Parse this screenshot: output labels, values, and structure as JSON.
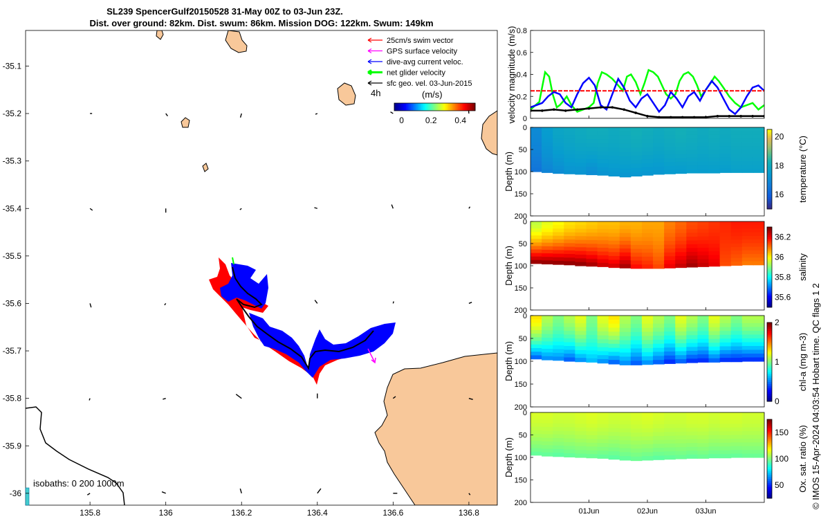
{
  "title": {
    "line1": "SL239 SpencerGulf20150528 31-May 00Z to 03-Jun 23Z.",
    "line2": "Dist. over ground: 82km. Dist. swum: 86km. Mission DOG: 122km. Swum: 149km"
  },
  "colors": {
    "swim": "#ff0000",
    "gps": "#ff00ff",
    "current": "#0000ff",
    "net": "#00ff00",
    "geo": "#000000",
    "land": "#f8c89a"
  },
  "map": {
    "legend": [
      {
        "label": "25cm/s swim vector",
        "color": "#ff0000"
      },
      {
        "label": "GPS surface velocity",
        "color": "#ff00ff"
      },
      {
        "label": "dive-avg current veloc.",
        "color": "#0000ff"
      },
      {
        "label": "net glider velocity",
        "color": "#00ff00"
      },
      {
        "label": "sfc geo. vel. 03-Jun-2015",
        "color": "#000000"
      }
    ],
    "interval_label": "4h",
    "colorbar": {
      "label": "(m/s)",
      "ticks": [
        "0",
        "0.2",
        "0.4"
      ],
      "range": [
        -0.05,
        0.5
      ]
    },
    "isobaths_label": "isobaths: 0   200  1000m",
    "lon_ticks": [
      "135.8",
      "136",
      "136.2",
      "136.4",
      "136.6",
      "136.8"
    ],
    "lat_ticks": [
      "-35.1",
      "-35.2",
      "-35.3",
      "-35.4",
      "-35.5",
      "-35.6",
      "-35.7",
      "-35.8",
      "-35.9",
      "-36"
    ],
    "xlim": [
      135.63,
      136.875
    ],
    "ylim": [
      -36.025,
      -35.025
    ]
  },
  "chart_data": [
    {
      "type": "line",
      "title": "",
      "xlabel": "",
      "ylabel": "velocity magnitude (m/s)",
      "ylim": [
        0,
        0.8
      ],
      "yticks": [
        "0",
        "0.2",
        "0.4",
        "0.6",
        "0.8"
      ],
      "xlim": [
        0,
        4
      ],
      "series": [
        {
          "name": "net glider velocity",
          "color": "#00ff00",
          "x": [
            0,
            0.15,
            0.25,
            0.32,
            0.38,
            0.45,
            0.5,
            0.55,
            0.62,
            0.7,
            0.8,
            0.9,
            1.0,
            1.08,
            1.15,
            1.22,
            1.3,
            1.4,
            1.5,
            1.58,
            1.65,
            1.72,
            1.8,
            1.88,
            1.95,
            2.02,
            2.1,
            2.18,
            2.25,
            2.32,
            2.4,
            2.48,
            2.55,
            2.62,
            2.7,
            2.78,
            2.85,
            2.92,
            3.0,
            3.08,
            3.15,
            3.22,
            3.3,
            3.4,
            3.5,
            3.6,
            3.7,
            3.8,
            3.9,
            4.0
          ],
          "values": [
            0.08,
            0.15,
            0.42,
            0.38,
            0.22,
            0.1,
            0.12,
            0.15,
            0.2,
            0.12,
            0.06,
            0.08,
            0.1,
            0.14,
            0.32,
            0.42,
            0.4,
            0.36,
            0.3,
            0.25,
            0.38,
            0.4,
            0.33,
            0.22,
            0.32,
            0.44,
            0.42,
            0.38,
            0.3,
            0.22,
            0.18,
            0.22,
            0.34,
            0.4,
            0.42,
            0.38,
            0.3,
            0.2,
            0.26,
            0.32,
            0.38,
            0.34,
            0.28,
            0.2,
            0.14,
            0.1,
            0.12,
            0.14,
            0.08,
            0.12
          ]
        },
        {
          "name": "dive-avg current veloc.",
          "color": "#0000ff",
          "x": [
            0,
            0.1,
            0.2,
            0.3,
            0.4,
            0.5,
            0.6,
            0.7,
            0.8,
            0.9,
            1.0,
            1.1,
            1.2,
            1.3,
            1.4,
            1.5,
            1.6,
            1.7,
            1.8,
            1.9,
            2.0,
            2.1,
            2.2,
            2.3,
            2.4,
            2.5,
            2.6,
            2.7,
            2.8,
            2.9,
            3.0,
            3.1,
            3.2,
            3.3,
            3.4,
            3.5,
            3.6,
            3.7,
            3.8,
            3.9,
            4.0
          ],
          "values": [
            0.1,
            0.12,
            0.14,
            0.2,
            0.24,
            0.22,
            0.14,
            0.1,
            0.22,
            0.32,
            0.37,
            0.3,
            0.12,
            0.08,
            0.22,
            0.36,
            0.28,
            0.16,
            0.1,
            0.18,
            0.22,
            0.14,
            0.06,
            0.12,
            0.24,
            0.18,
            0.1,
            0.2,
            0.24,
            0.16,
            0.26,
            0.34,
            0.28,
            0.18,
            0.08,
            0.04,
            0.1,
            0.2,
            0.28,
            0.3,
            0.25
          ]
        },
        {
          "name": "25cm/s swim vector",
          "color": "#ff0000",
          "x": [
            0,
            4
          ],
          "values": [
            0.25,
            0.25
          ]
        },
        {
          "name": "sfc geo. vel. 03-Jun-2015",
          "color": "#000000",
          "x": [
            0,
            0.2,
            0.4,
            0.6,
            0.8,
            1.0,
            1.2,
            1.4,
            1.6,
            1.8,
            2.0,
            2.2,
            2.4,
            2.6,
            2.8,
            3.0,
            3.2,
            3.4,
            3.6,
            3.8,
            4.0
          ],
          "values": [
            0.07,
            0.07,
            0.08,
            0.07,
            0.08,
            0.09,
            0.1,
            0.1,
            0.08,
            0.05,
            0.02,
            0.01,
            0.01,
            0.01,
            0.01,
            0.01,
            0.02,
            0.02,
            0.02,
            0.02,
            0.02
          ]
        }
      ]
    },
    {
      "type": "heatmap",
      "ylabel": "Depth (m)",
      "colorbar_label": "temperature (°C)",
      "colorbar_ticks": [
        "16",
        "18",
        "20"
      ],
      "clim": [
        15,
        20.5
      ],
      "ylim": [
        0,
        200
      ],
      "yticks": [
        "0",
        "50",
        "100",
        "150",
        "200"
      ],
      "bottom_depth": [
        100,
        102,
        104,
        105,
        106,
        107,
        108,
        110,
        112,
        110,
        108,
        106,
        105,
        104,
        103,
        103,
        103,
        102,
        102,
        102,
        102
      ],
      "surface_values": [
        17.0,
        17.5,
        17.8,
        17.9,
        18.0,
        18.1,
        18.1,
        18.0,
        18.1,
        18.2,
        18.1,
        18.0,
        18.1,
        18.2,
        18.1,
        18.0,
        18.1,
        18.0,
        18.1,
        18.1,
        18.1
      ],
      "bottom_values": [
        16.4,
        16.8,
        17.0,
        17.2,
        17.2,
        17.0,
        17.2,
        17.3,
        17.3,
        17.3,
        17.3,
        17.3,
        17.4,
        17.4,
        17.5,
        17.5,
        17.5,
        17.5,
        17.6,
        17.6,
        17.6
      ]
    },
    {
      "type": "heatmap",
      "ylabel": "Depth (m)",
      "colorbar_label": "salinity",
      "colorbar_ticks": [
        "35.6",
        "35.8",
        "36",
        "36.2"
      ],
      "clim": [
        35.5,
        36.3
      ],
      "ylim": [
        0,
        200
      ],
      "yticks": [
        "0",
        "50",
        "100",
        "150",
        "200"
      ],
      "bottom_depth": [
        95,
        96,
        97,
        98,
        100,
        101,
        102,
        104,
        105,
        106,
        106,
        106,
        105,
        104,
        103,
        102,
        101,
        100,
        99,
        98,
        98
      ],
      "surface_values": [
        35.95,
        35.98,
        36.0,
        36.02,
        36.03,
        36.04,
        36.05,
        36.05,
        36.06,
        36.06,
        36.07,
        36.07,
        36.1,
        36.12,
        36.14,
        36.15,
        36.16,
        36.17,
        36.18,
        36.18,
        36.18
      ],
      "bottom_values": [
        36.3,
        36.3,
        36.3,
        36.3,
        36.3,
        36.28,
        36.25,
        36.24,
        36.28,
        36.2,
        36.18,
        36.15,
        36.22,
        36.25,
        36.28,
        36.25,
        36.22,
        36.14,
        36.12,
        36.1,
        36.1
      ]
    },
    {
      "type": "heatmap",
      "ylabel": "Depth (m)",
      "colorbar_label": "chl-a (mg m-3)",
      "colorbar_ticks": [
        "0",
        "1",
        "2"
      ],
      "clim": [
        0,
        2
      ],
      "ylim": [
        0,
        200
      ],
      "yticks": [
        "0",
        "50",
        "100",
        "150",
        "200"
      ],
      "bottom_depth": [
        95,
        97,
        98,
        100,
        101,
        102,
        104,
        106,
        108,
        108,
        107,
        106,
        105,
        104,
        103,
        102,
        102,
        101,
        101,
        100,
        100
      ],
      "surface_values": [
        1.3,
        1.1,
        1.0,
        1.1,
        1.2,
        1.0,
        1.2,
        1.3,
        1.1,
        1.0,
        1.2,
        1.1,
        1.0,
        1.2,
        1.1,
        1.0,
        1.2,
        1.1,
        1.0,
        1.1,
        1.1
      ],
      "bottom_values": [
        0.4,
        0.5,
        0.5,
        0.4,
        0.5,
        0.6,
        0.5,
        0.4,
        0.5,
        0.4,
        0.5,
        0.4,
        0.3,
        0.4,
        0.3,
        0.3,
        0.4,
        0.3,
        0.3,
        0.3,
        0.3
      ]
    },
    {
      "type": "heatmap",
      "ylabel": "Depth (m)",
      "colorbar_label": "Ox. sat. ratio (%)",
      "colorbar_ticks": [
        "50",
        "100",
        "150"
      ],
      "clim": [
        25,
        175
      ],
      "ylim": [
        0,
        200
      ],
      "yticks": [
        "0",
        "50",
        "100",
        "150",
        "200"
      ],
      "bottom_depth": [
        95,
        97,
        98,
        99,
        100,
        101,
        102,
        104,
        106,
        107,
        106,
        105,
        104,
        103,
        102,
        102,
        101,
        101,
        100,
        100,
        100
      ],
      "surface_values": [
        113,
        113,
        112,
        112,
        113,
        114,
        113,
        112,
        112,
        113,
        114,
        113,
        112,
        112,
        113,
        113,
        112,
        113,
        113,
        112,
        112
      ],
      "bottom_values": [
        95,
        95,
        94,
        95,
        96,
        96,
        95,
        94,
        95,
        96,
        95,
        94,
        95,
        96,
        95,
        96,
        95,
        95,
        95,
        96,
        96
      ]
    }
  ],
  "time_ticks": [
    "01Jun",
    "02Jun",
    "03Jun"
  ],
  "credit": "© IMOS 15-Apr-2024 04:03:54 Hobart time. QC flags 1  2"
}
